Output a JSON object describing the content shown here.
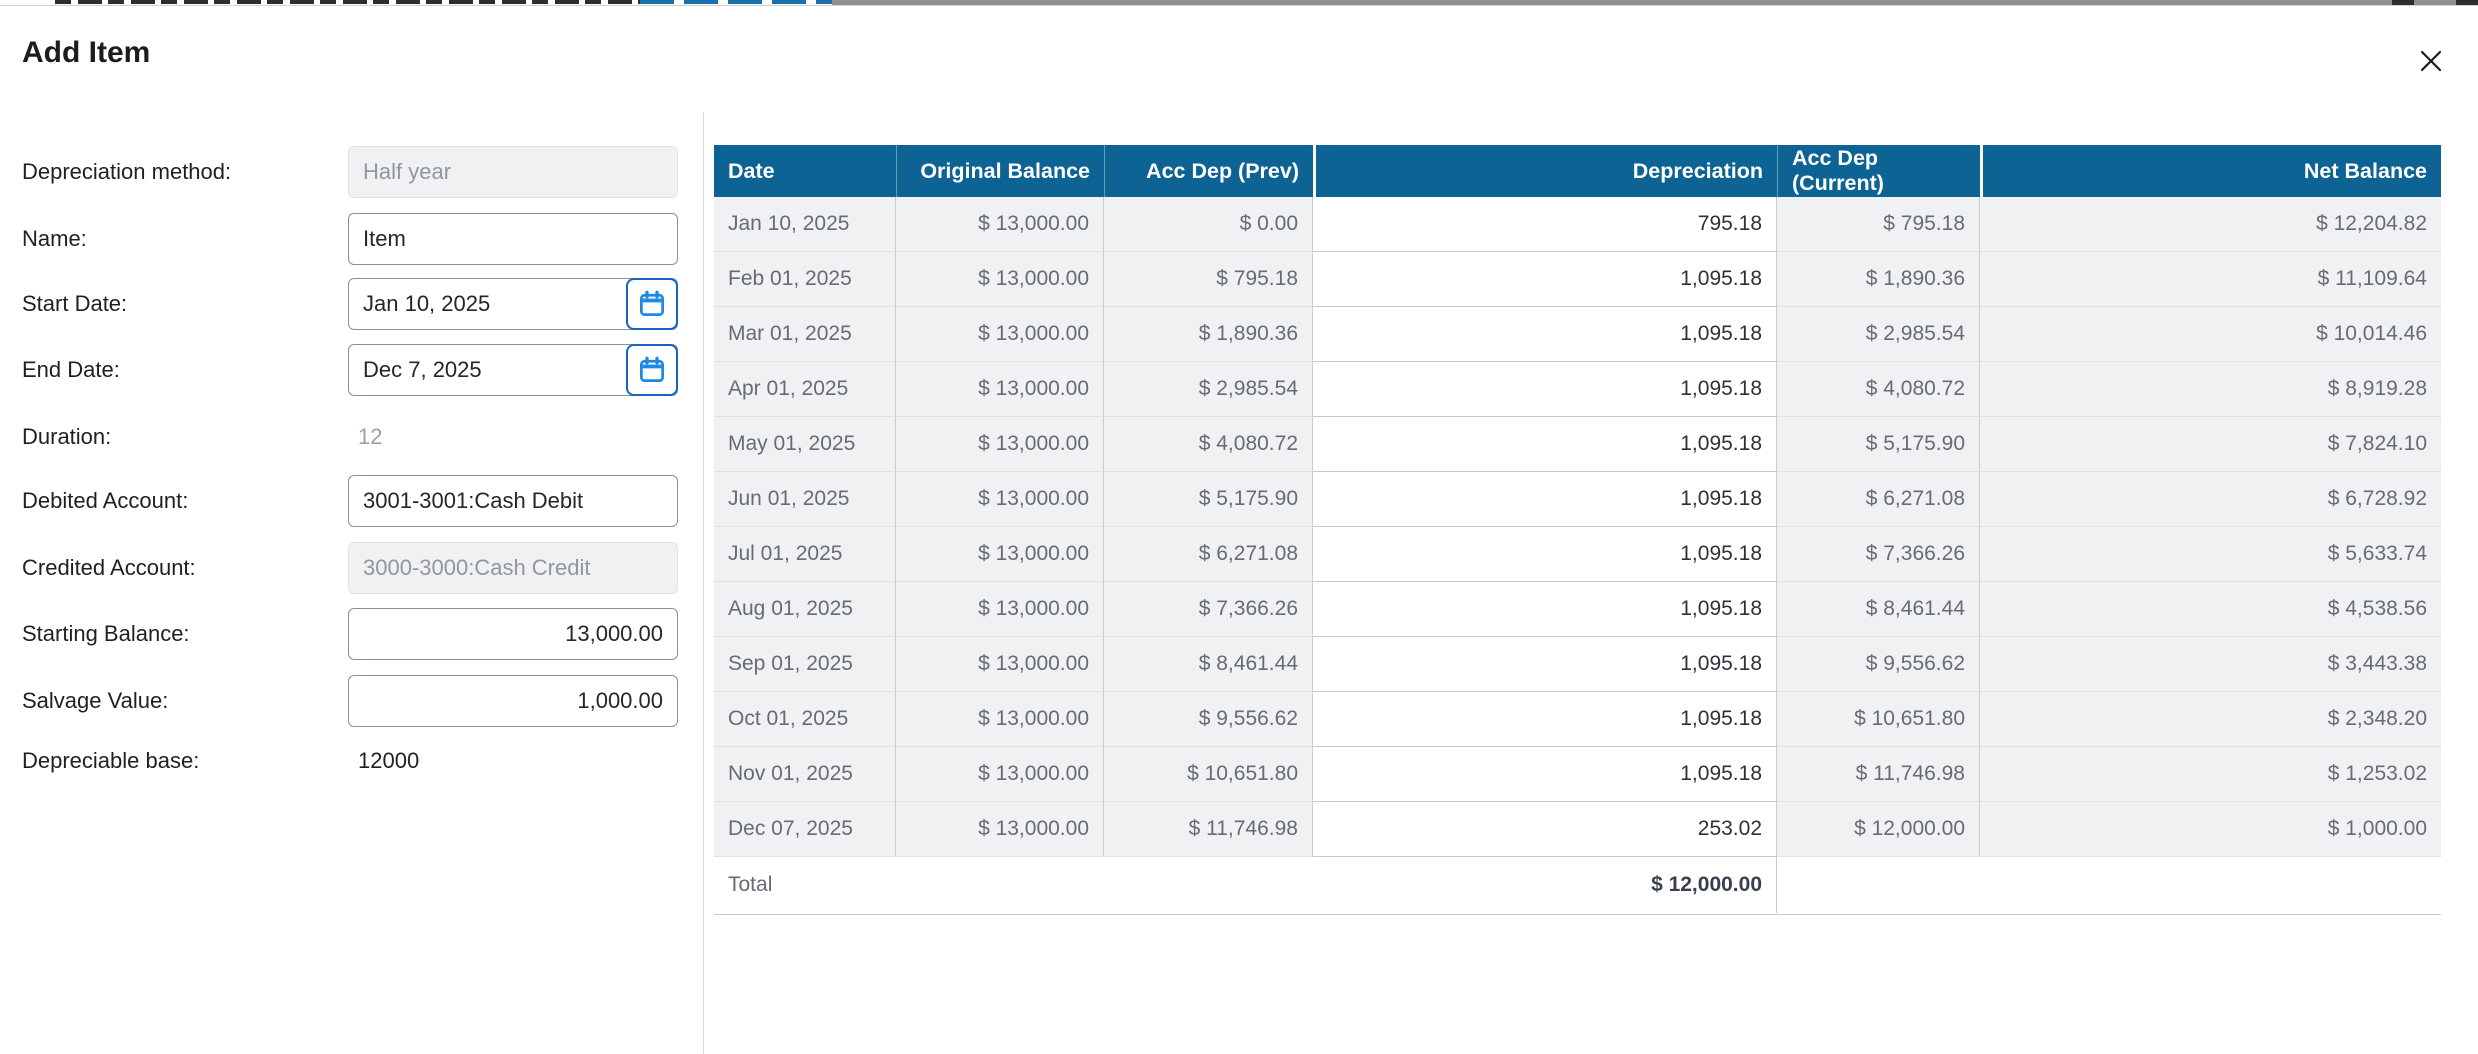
{
  "modal": {
    "title": "Add Item"
  },
  "form": {
    "fields": [
      {
        "id": "depreciation-method",
        "label": "Depreciation method:",
        "value": "Half year",
        "type": "disabled"
      },
      {
        "id": "name",
        "label": "Name:",
        "value": "Item",
        "type": "text"
      },
      {
        "id": "start-date",
        "label": "Start Date:",
        "value": "Jan 10, 2025",
        "type": "date"
      },
      {
        "id": "end-date",
        "label": "End Date:",
        "value": "Dec 7, 2025",
        "type": "date"
      },
      {
        "id": "duration",
        "label": "Duration:",
        "value": "12",
        "type": "static-muted"
      },
      {
        "id": "debited-account",
        "label": "Debited Account:",
        "value": "3001-3001:Cash Debit",
        "type": "text"
      },
      {
        "id": "credited-account",
        "label": "Credited Account:",
        "value": "3000-3000:Cash Credit",
        "type": "disabled"
      },
      {
        "id": "starting-balance",
        "label": "Starting Balance:",
        "value": "13,000.00",
        "type": "number"
      },
      {
        "id": "salvage-value",
        "label": "Salvage Value:",
        "value": "1,000.00",
        "type": "number"
      },
      {
        "id": "depreciable-base",
        "label": "Depreciable base:",
        "value": "12000",
        "type": "static"
      }
    ]
  },
  "table": {
    "columns": [
      "Date",
      "Original Balance",
      "Acc Dep (Prev)",
      "Depreciation",
      "Acc Dep (Current)",
      "Net Balance"
    ],
    "rows": [
      [
        "Jan 10, 2025",
        "$ 13,000.00",
        "$ 0.00",
        "795.18",
        "$ 795.18",
        "$ 12,204.82"
      ],
      [
        "Feb 01, 2025",
        "$ 13,000.00",
        "$ 795.18",
        "1,095.18",
        "$ 1,890.36",
        "$ 11,109.64"
      ],
      [
        "Mar 01, 2025",
        "$ 13,000.00",
        "$ 1,890.36",
        "1,095.18",
        "$ 2,985.54",
        "$ 10,014.46"
      ],
      [
        "Apr 01, 2025",
        "$ 13,000.00",
        "$ 2,985.54",
        "1,095.18",
        "$ 4,080.72",
        "$ 8,919.28"
      ],
      [
        "May 01, 2025",
        "$ 13,000.00",
        "$ 4,080.72",
        "1,095.18",
        "$ 5,175.90",
        "$ 7,824.10"
      ],
      [
        "Jun 01, 2025",
        "$ 13,000.00",
        "$ 5,175.90",
        "1,095.18",
        "$ 6,271.08",
        "$ 6,728.92"
      ],
      [
        "Jul 01, 2025",
        "$ 13,000.00",
        "$ 6,271.08",
        "1,095.18",
        "$ 7,366.26",
        "$ 5,633.74"
      ],
      [
        "Aug 01, 2025",
        "$ 13,000.00",
        "$ 7,366.26",
        "1,095.18",
        "$ 8,461.44",
        "$ 4,538.56"
      ],
      [
        "Sep 01, 2025",
        "$ 13,000.00",
        "$ 8,461.44",
        "1,095.18",
        "$ 9,556.62",
        "$ 3,443.38"
      ],
      [
        "Oct 01, 2025",
        "$ 13,000.00",
        "$ 9,556.62",
        "1,095.18",
        "$ 10,651.80",
        "$ 2,348.20"
      ],
      [
        "Nov 01, 2025",
        "$ 13,000.00",
        "$ 10,651.80",
        "1,095.18",
        "$ 11,746.98",
        "$ 1,253.02"
      ],
      [
        "Dec 07, 2025",
        "$ 13,000.00",
        "$ 11,746.98",
        "253.02",
        "$ 12,000.00",
        "$ 1,000.00"
      ]
    ],
    "total_label": "Total",
    "total_value": "$ 12,000.00"
  },
  "colors": {
    "table_header_blue": "#0d6394",
    "calendar_icon_blue": "#1e88e5",
    "calendar_button_border": "#1565c0",
    "row_background": "#f0f1f3",
    "row_text": "#666b76",
    "divider": "#d9d9d9"
  }
}
